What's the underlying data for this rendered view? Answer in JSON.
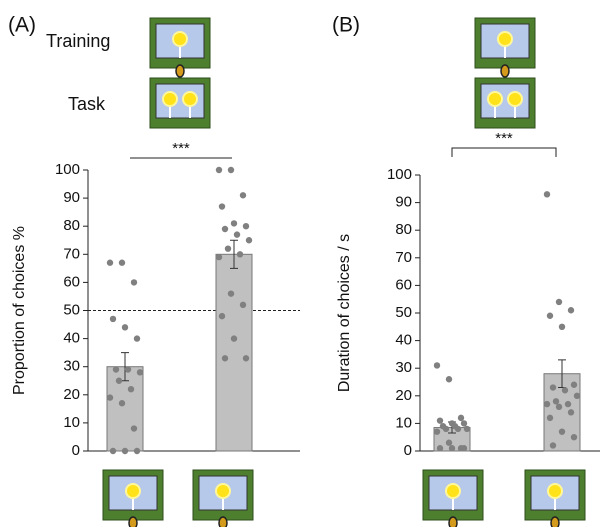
{
  "chart_data": [
    {
      "type": "bar",
      "title": "(A)",
      "annotations": [
        "Training",
        "Task"
      ],
      "significance": "***",
      "ylabel": "Proportion of choices  %",
      "categories": [
        null,
        null
      ],
      "values": [
        30,
        70
      ],
      "errors": [
        5,
        5
      ],
      "color": "#c0c0c0",
      "points": [
        [
          67,
          67,
          60,
          47,
          44,
          40,
          29,
          29,
          28,
          25,
          22,
          19,
          17,
          8,
          0,
          0,
          0
        ],
        [
          100,
          100,
          91,
          87,
          81,
          80,
          79,
          77,
          75,
          72,
          70,
          69,
          56,
          52,
          48,
          40,
          33,
          33
        ]
      ],
      "reference_line": 50,
      "ylim": [
        0,
        100
      ],
      "yticks": [
        0,
        10,
        20,
        30,
        40,
        50,
        60,
        70,
        80,
        90,
        100
      ]
    },
    {
      "type": "bar",
      "title": "(B)",
      "significance": "***",
      "ylabel": "Duration of choices / s",
      "categories": [
        null,
        null
      ],
      "values": [
        8.5,
        28
      ],
      "errors": [
        2,
        5
      ],
      "color": "#c0c0c0",
      "points": [
        [
          31,
          26,
          12,
          11,
          10,
          10,
          9,
          9,
          8,
          8,
          8,
          7,
          3,
          1,
          1,
          1,
          1
        ],
        [
          93,
          54,
          51,
          49,
          45,
          24,
          23,
          22,
          20,
          18,
          17,
          17,
          16,
          14,
          12,
          7,
          5,
          2
        ]
      ],
      "ylim": [
        0,
        100
      ],
      "yticks": [
        0,
        10,
        20,
        30,
        40,
        50,
        60,
        70,
        80,
        90,
        100
      ]
    }
  ]
}
